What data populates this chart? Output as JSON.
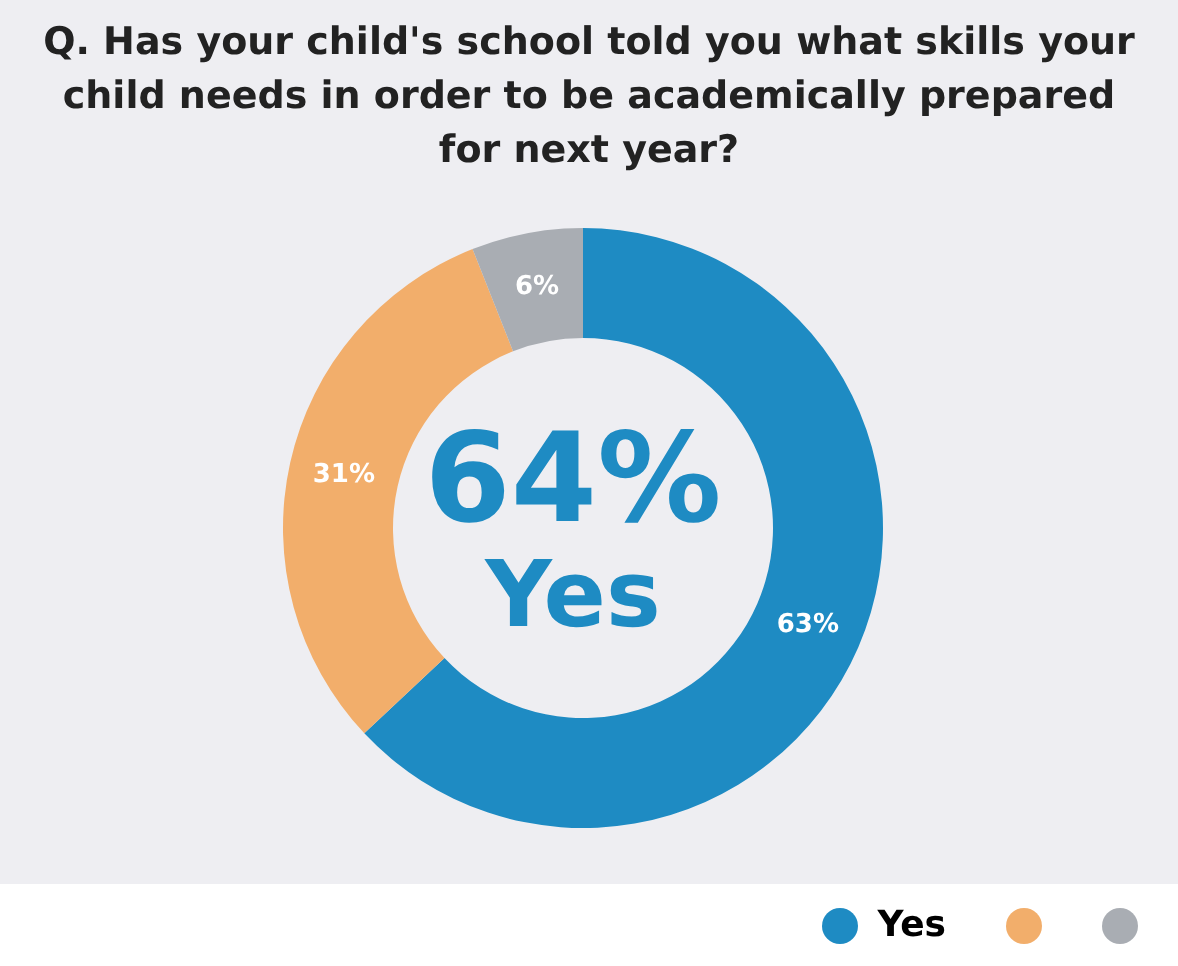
{
  "chart_data": {
    "type": "donut",
    "title": "Q. Has your child's school told you what skills your child needs in order to be academically prepared for next year?",
    "categories": [
      "Yes",
      null,
      null
    ],
    "values": [
      63,
      31,
      6
    ],
    "colors": [
      "#1e8bc3",
      "#f2ae6b",
      "#a9adb3"
    ],
    "value_labels": [
      "63%",
      "31%",
      "6%"
    ],
    "annotations": [
      "64%",
      "Yes"
    ],
    "legend": "bottom"
  }
}
